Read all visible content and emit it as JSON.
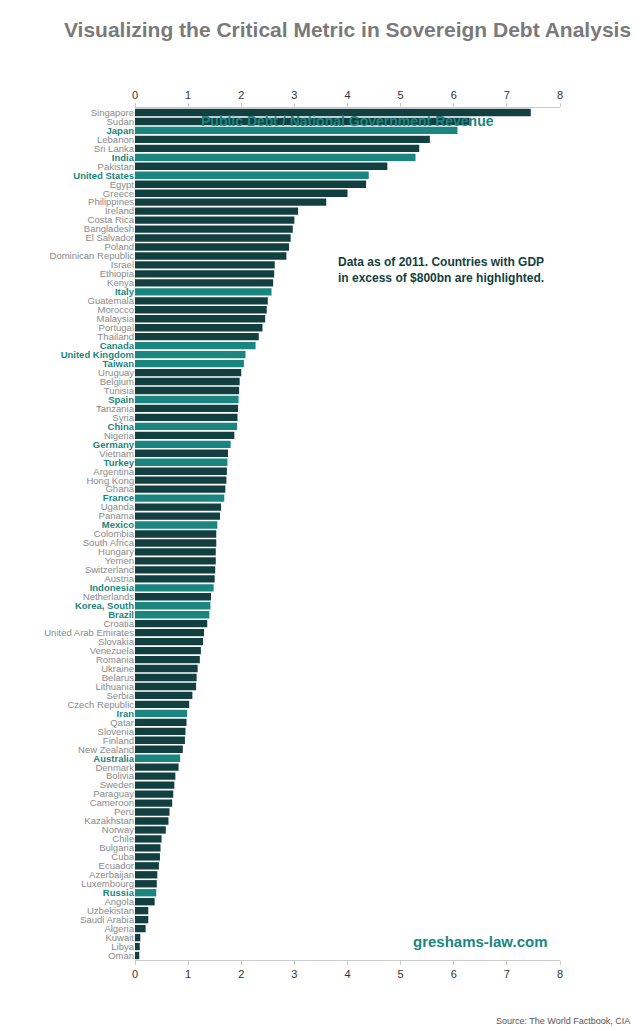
{
  "chart_data": {
    "type": "bar",
    "orientation": "horizontal",
    "title": "Visualizing the Critical Metric in Sovereign Debt Analysis",
    "subtitle": "Public Debt / National Government Revenue",
    "annotations": [
      "Data as of 2011. Countries with GDP in excess of $800bn are highlighted.",
      "greshams-law.com",
      "Source: The World Factbook, CIA"
    ],
    "categories": [
      "Singapore",
      "Sudan",
      "Japan",
      "Lebanon",
      "Sri Lanka",
      "India",
      "Pakistan",
      "United States",
      "Egypt",
      "Greece",
      "Philippines",
      "Ireland",
      "Costa Rica",
      "Bangladesh",
      "El Salvador",
      "Poland",
      "Dominican Republic",
      "Israel",
      "Ethiopia",
      "Kenya",
      "Italy",
      "Guatemala",
      "Morocco",
      "Malaysia",
      "Portugal",
      "Thailand",
      "Canada",
      "United Kingdom",
      "Taiwan",
      "Uruguay",
      "Belgium",
      "Tunisia",
      "Spain",
      "Tanzania",
      "Syria",
      "China",
      "Nigeria",
      "Germany",
      "Vietnam",
      "Turkey",
      "Argentina",
      "Hong Kong",
      "Ghana",
      "France",
      "Uganda",
      "Panama",
      "Mexico",
      "Colombia",
      "South Africa",
      "Hungary",
      "Yemen",
      "Switzerland",
      "Austria",
      "Indonesia",
      "Netherlands",
      "Korea, South",
      "Brazil",
      "Croatia",
      "United Arab Emirates",
      "Slovakia",
      "Venezuela",
      "Romania",
      "Ukraine",
      "Belarus",
      "Lithuania",
      "Serbia",
      "Czech Republic",
      "Iran",
      "Qatar",
      "Slovenia",
      "Finland",
      "New Zealand",
      "Australia",
      "Denmark",
      "Bolivia",
      "Sweden",
      "Paraguay",
      "Cameroon",
      "Peru",
      "Kazakhstan",
      "Norway",
      "Chile",
      "Bulgaria",
      "Cuba",
      "Ecuador",
      "Azerbaijan",
      "Luxembourg",
      "Russia",
      "Angola",
      "Uzbekistan",
      "Saudi Arabia",
      "Algeria",
      "Kuwait",
      "Libya",
      "Oman"
    ],
    "values": [
      7.45,
      6.3,
      6.07,
      5.55,
      5.35,
      5.28,
      4.75,
      4.4,
      4.35,
      4.0,
      3.6,
      3.07,
      3.0,
      2.97,
      2.93,
      2.9,
      2.85,
      2.63,
      2.62,
      2.6,
      2.57,
      2.5,
      2.48,
      2.45,
      2.4,
      2.33,
      2.27,
      2.08,
      2.05,
      2.0,
      1.97,
      1.96,
      1.95,
      1.94,
      1.93,
      1.92,
      1.87,
      1.8,
      1.75,
      1.74,
      1.73,
      1.72,
      1.7,
      1.68,
      1.62,
      1.6,
      1.55,
      1.53,
      1.53,
      1.52,
      1.52,
      1.51,
      1.5,
      1.48,
      1.43,
      1.42,
      1.4,
      1.36,
      1.3,
      1.28,
      1.24,
      1.22,
      1.18,
      1.16,
      1.15,
      1.08,
      1.02,
      0.98,
      0.97,
      0.95,
      0.94,
      0.9,
      0.85,
      0.82,
      0.76,
      0.74,
      0.72,
      0.7,
      0.65,
      0.63,
      0.58,
      0.5,
      0.48,
      0.47,
      0.45,
      0.42,
      0.41,
      0.4,
      0.37,
      0.25,
      0.25,
      0.2,
      0.1,
      0.09,
      0.08
    ],
    "colors": [
      "#123f40",
      "#123f40",
      "#1b8580",
      "#123f40",
      "#123f40",
      "#1b8580",
      "#123f40",
      "#1b8580",
      "#123f40",
      "#123f40",
      "#123f40",
      "#123f40",
      "#123f40",
      "#123f40",
      "#123f40",
      "#123f40",
      "#123f40",
      "#123f40",
      "#123f40",
      "#123f40",
      "#1b8580",
      "#123f40",
      "#123f40",
      "#123f40",
      "#123f40",
      "#123f40",
      "#1b8580",
      "#1b8580",
      "#1b8580",
      "#123f40",
      "#123f40",
      "#123f40",
      "#1b8580",
      "#123f40",
      "#123f40",
      "#1b8580",
      "#123f40",
      "#1b8580",
      "#123f40",
      "#1b8580",
      "#123f40",
      "#123f40",
      "#123f40",
      "#1b8580",
      "#123f40",
      "#123f40",
      "#1b8580",
      "#123f40",
      "#123f40",
      "#123f40",
      "#123f40",
      "#123f40",
      "#123f40",
      "#1b8580",
      "#123f40",
      "#1b8580",
      "#1b8580",
      "#123f40",
      "#123f40",
      "#123f40",
      "#123f40",
      "#123f40",
      "#123f40",
      "#123f40",
      "#123f40",
      "#123f40",
      "#123f40",
      "#1b8580",
      "#123f40",
      "#123f40",
      "#123f40",
      "#123f40",
      "#1b8580",
      "#123f40",
      "#123f40",
      "#123f40",
      "#123f40",
      "#123f40",
      "#123f40",
      "#123f40",
      "#123f40",
      "#123f40",
      "#123f40",
      "#123f40",
      "#123f40",
      "#123f40",
      "#123f40",
      "#1b8580",
      "#123f40",
      "#123f40",
      "#123f40",
      "#123f40",
      "#123f40",
      "#123f40",
      "#123f40"
    ],
    "xlim": [
      0,
      8
    ],
    "xticks": [
      0,
      1,
      2,
      3,
      4,
      5,
      6,
      7,
      8
    ],
    "grid": false
  }
}
